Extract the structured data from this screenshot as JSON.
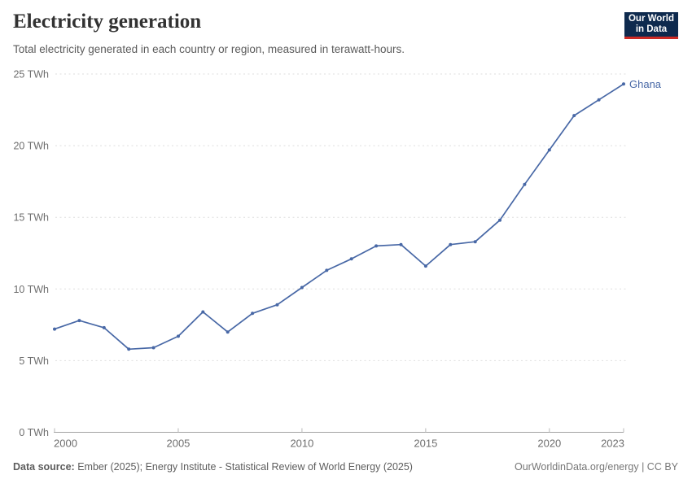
{
  "header": {
    "title": "Electricity generation",
    "subtitle": "Total electricity generated in each country or region, measured in terawatt-hours.",
    "logo": {
      "line1": "Our World",
      "line2": "in Data"
    }
  },
  "footer": {
    "source_label": "Data source:",
    "source_text": " Ember (2025); Energy Institute - Statistical Review of World Energy (2025)",
    "credit": "OurWorldinData.org/energy | CC BY"
  },
  "colors": {
    "series_blue": "#4868a6",
    "gridline": "#dedede",
    "axis_line": "#a3a3a3",
    "tick": "#b8b8b8",
    "axis_text": "#6e6e6e",
    "logo_navy": "#0e2a4e",
    "logo_red": "#cd2b25"
  },
  "chart_data": {
    "type": "line",
    "title": "Electricity generation",
    "unit": "terawatt-hours",
    "xlabel": "",
    "ylabel": "",
    "xlim": [
      2000,
      2023
    ],
    "ylim": [
      0,
      25
    ],
    "xticks": [
      2000,
      2005,
      2010,
      2015,
      2020,
      2023
    ],
    "yticks": [
      0,
      5,
      10,
      15,
      20,
      25
    ],
    "ytick_suffix": " TWh",
    "grid": "horizontal-dashed",
    "legend_position": "end-of-line",
    "x": [
      2000,
      2001,
      2002,
      2003,
      2004,
      2005,
      2006,
      2007,
      2008,
      2009,
      2010,
      2011,
      2012,
      2013,
      2014,
      2015,
      2016,
      2017,
      2018,
      2019,
      2020,
      2021,
      2022,
      2023
    ],
    "series": [
      {
        "name": "Ghana",
        "color": "#4868a6",
        "values": [
          7.2,
          7.8,
          7.3,
          5.8,
          5.9,
          6.7,
          8.4,
          7.0,
          8.3,
          8.9,
          10.1,
          11.3,
          12.1,
          13.0,
          13.1,
          11.6,
          13.1,
          13.3,
          14.8,
          17.3,
          19.7,
          22.1,
          23.2,
          24.3
        ]
      }
    ]
  }
}
